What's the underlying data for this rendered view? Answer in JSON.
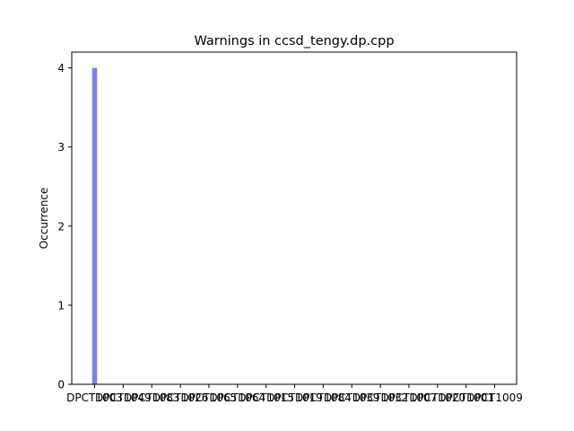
{
  "chart_data": {
    "type": "bar",
    "title": "Warnings in ccsd_tengy.dp.cpp",
    "xlabel": "",
    "ylabel": "Occurrence",
    "categories": [
      "DPCT1003",
      "DPCT1049",
      "DPCT1083",
      "DPCT1026",
      "DPCT1065",
      "DPCT1064",
      "DPCT1015",
      "DPCT1019",
      "DPCT1084",
      "DPCT1039",
      "DPCT1032",
      "DPCT1007",
      "DPCT1020",
      "DPCT1001",
      "DPCT1009"
    ],
    "values": [
      4,
      0,
      0,
      0,
      0,
      0,
      0,
      0,
      0,
      0,
      0,
      0,
      0,
      0,
      0
    ],
    "ylim": [
      0,
      4.2
    ],
    "yticks": [
      0,
      1,
      2,
      3,
      4
    ],
    "bar_color": "#7f7fe8",
    "grid": false,
    "legend": "none"
  }
}
